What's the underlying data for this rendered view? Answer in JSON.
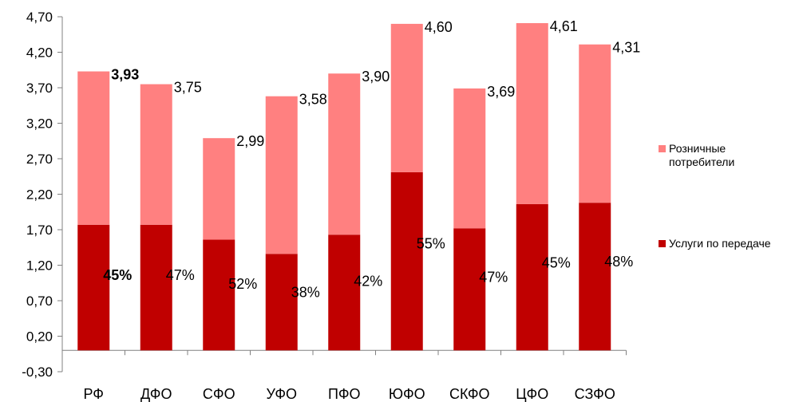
{
  "chart_data": {
    "type": "bar",
    "stacked": true,
    "categories": [
      "РФ",
      "ДФО",
      "СФО",
      "УФО",
      "ПФО",
      "ЮФО",
      "СКФО",
      "ЦФО",
      "СЗФО"
    ],
    "series": [
      {
        "name": "Услуги по передаче",
        "color": "#c00000",
        "values": [
          1.77,
          1.77,
          1.56,
          1.36,
          1.63,
          2.51,
          1.72,
          2.06,
          2.08
        ]
      },
      {
        "name": "Розничные потребители",
        "color": "#ff8080",
        "values": [
          2.16,
          1.98,
          1.43,
          2.22,
          2.27,
          2.09,
          1.97,
          2.55,
          2.23
        ]
      }
    ],
    "totals": [
      3.93,
      3.75,
      2.99,
      3.58,
      3.9,
      4.6,
      3.69,
      4.61,
      4.31
    ],
    "total_labels": [
      "3,93",
      "3,75",
      "2,99",
      "3,58",
      "3,90",
      "4,60",
      "3,69",
      "4,61",
      "4,31"
    ],
    "share_labels": [
      "45%",
      "47%",
      "52%",
      "38%",
      "42%",
      "55%",
      "47%",
      "45%",
      "48%"
    ],
    "bold_category_index": 0,
    "y_ticks": [
      -0.3,
      0.2,
      0.7,
      1.2,
      1.7,
      2.2,
      2.7,
      3.2,
      3.7,
      4.2,
      4.7
    ],
    "y_tick_labels": [
      "-0,30",
      "0,20",
      "0,70",
      "1,20",
      "1,70",
      "2,20",
      "2,70",
      "3,20",
      "3,70",
      "4,20",
      "4,70"
    ],
    "ylim": [
      -0.3,
      4.7
    ],
    "grid": false,
    "legend_position": "right",
    "legend": [
      {
        "label": "Розничные потребители",
        "color": "#ff8080"
      },
      {
        "label": "Услуги по передаче",
        "color": "#c00000"
      }
    ]
  }
}
